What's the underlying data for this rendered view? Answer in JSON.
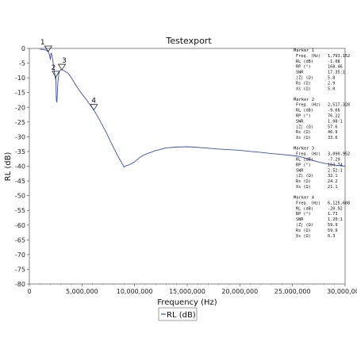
{
  "chart_data": {
    "type": "line",
    "title": "Testexport",
    "xlabel": "Frequency (Hz)",
    "ylabel": "RL (dB)",
    "xlim": [
      0,
      30000000
    ],
    "ylim": [
      -80,
      0
    ],
    "x_ticks": [
      0,
      5000000,
      10000000,
      15000000,
      20000000,
      25000000,
      30000000
    ],
    "x_tick_labels": [
      "0",
      "5,000,000",
      "10,000,000",
      "15,000,000",
      "20,000,000",
      "25,000,000",
      "30,000,000"
    ],
    "y_ticks": [
      0,
      -5,
      -10,
      -15,
      -20,
      -25,
      -30,
      -35,
      -40,
      -45,
      -50,
      -55,
      -60,
      -65,
      -70,
      -75,
      -80
    ],
    "y_tick_labels": [
      "0",
      "-5",
      "-10",
      "-15",
      "-20",
      "-25",
      "-30",
      "-35",
      "-40",
      "-45",
      "-50",
      "-55",
      "-60",
      "-65",
      "-70",
      "-75",
      "-80"
    ],
    "grid": false,
    "legend": {
      "position": "bottom-center",
      "entries": [
        "RL (dB)"
      ]
    },
    "series": [
      {
        "name": "RL (dB)",
        "color": "#3a4fb8",
        "x": [
          1000000,
          1300000,
          1600000,
          1793152,
          1900000,
          2000000,
          2050000,
          2100000,
          2200000,
          2300000,
          2400000,
          2480000,
          2517328,
          2560000,
          2620000,
          2700000,
          2800000,
          2900000,
          3000000,
          3090952,
          3200000,
          3400000,
          3700000,
          4000000,
          4500000,
          5000000,
          5500000,
          6125608,
          6700000,
          7300000,
          7900000,
          8400000,
          8800000,
          9000000,
          9200000,
          9500000,
          10000000,
          10500000,
          11000000,
          12000000,
          13000000,
          14000000,
          15000000,
          16000000,
          17000000,
          18000000,
          19000000,
          20000000,
          21000000,
          22000000,
          23000000,
          24000000,
          25000000,
          25500000,
          26000000,
          26500000,
          27000000,
          27500000,
          28000000,
          28500000,
          29000000,
          29500000,
          30000000
        ],
        "y": [
          -0.3,
          -0.4,
          -0.6,
          -1.1,
          -2.0,
          -3.8,
          -1.8,
          -1.6,
          -3.5,
          -6.2,
          -8.5,
          -10.5,
          -9.7,
          -17.5,
          -18.3,
          -12.0,
          -8.5,
          -7.5,
          -7.2,
          -7.3,
          -7.4,
          -7.8,
          -8.5,
          -10.0,
          -13.0,
          -15.5,
          -17.8,
          -20.9,
          -24.5,
          -28.5,
          -33.0,
          -36.5,
          -39.0,
          -40.3,
          -39.8,
          -39.5,
          -38.5,
          -37.0,
          -36.0,
          -34.7,
          -33.8,
          -33.5,
          -33.4,
          -33.6,
          -33.9,
          -34.2,
          -34.4,
          -34.6,
          -35.0,
          -35.3,
          -35.7,
          -36.0,
          -36.4,
          -36.6,
          -37.0,
          -37.6,
          -38.1,
          -38.6,
          -39.0,
          -39.3,
          -39.6,
          -39.8,
          -40.0
        ]
      }
    ],
    "markers": [
      {
        "id": "1",
        "x": 1793152,
        "y": -1.08
      },
      {
        "id": "2",
        "x": 2517328,
        "y": -9.66
      },
      {
        "id": "3",
        "x": 3090952,
        "y": -7.29
      },
      {
        "id": "4",
        "x": 6125608,
        "y": -20.92
      }
    ],
    "marker_table": [
      {
        "title": "Marker 1",
        "rows": [
          {
            "label": "Freq. (Hz)",
            "value": "1,793,152"
          },
          {
            "label": "RL (dB)",
            "value": "-1.08"
          },
          {
            "label": "RP (°)",
            "value": "168.46"
          },
          {
            "label": "SWR",
            "value": "17.35:1"
          },
          {
            "label": "|Z| (Ω)",
            "value": "5.8"
          },
          {
            "label": "Rs (Ω)",
            "value": "2.9"
          },
          {
            "label": "Xs (Ω)",
            "value": "5.0"
          }
        ]
      },
      {
        "title": "Marker 2",
        "rows": [
          {
            "label": "Freq. (Hz)",
            "value": "2,517,328"
          },
          {
            "label": "RL (dB)",
            "value": "-9.66"
          },
          {
            "label": "RP (°)",
            "value": "76.22"
          },
          {
            "label": "SWR",
            "value": "1.98:1"
          },
          {
            "label": "|Z| (Ω)",
            "value": "57.6"
          },
          {
            "label": "Rs (Ω)",
            "value": "46.9"
          },
          {
            "label": "Xs (Ω)",
            "value": "33.6"
          }
        ]
      },
      {
        "title": "Marker 3",
        "rows": [
          {
            "label": "Freq. (Hz)",
            "value": "3,090,952"
          },
          {
            "label": "RL (dB)",
            "value": "-7.29"
          },
          {
            "label": "RP (°)",
            "value": "164.74"
          },
          {
            "label": "SWR",
            "value": "2.52:1"
          },
          {
            "label": "|Z| (Ω)",
            "value": "32.1"
          },
          {
            "label": "Rs (Ω)",
            "value": "24.2"
          },
          {
            "label": "Xs (Ω)",
            "value": "21.1"
          }
        ]
      },
      {
        "title": "Marker 4",
        "rows": [
          {
            "label": "Freq. (Hz)",
            "value": "6,125,608"
          },
          {
            "label": "RL (dB)",
            "value": "-20.92"
          },
          {
            "label": "RP (°)",
            "value": "1.73"
          },
          {
            "label": "SWR",
            "value": "1.20:1"
          },
          {
            "label": "|Z| (Ω)",
            "value": "59.9"
          },
          {
            "label": "Rs (Ω)",
            "value": "59.9"
          },
          {
            "label": "Xs (Ω)",
            "value": "0.3"
          }
        ]
      }
    ]
  }
}
